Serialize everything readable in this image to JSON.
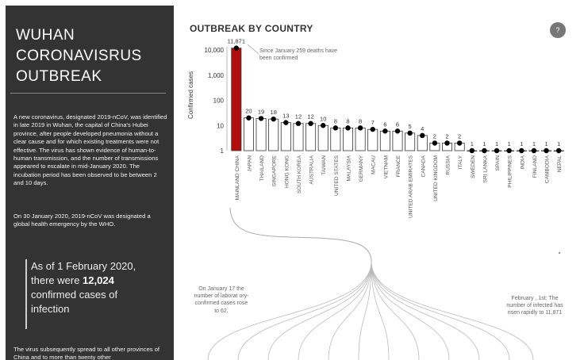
{
  "sidebar": {
    "title": "WUHAN\nCORONAVISRUS\nOUTBREAK",
    "paragraph1": "A new coronavirus, designated 2019-nCoV, was identified in late 2019 in Wuhan, the capital of China's Hubei province, after people developed pneumonia without a clear cause and for which existing treatments were not effective. The virus has shown evidence of human-to-human transmission, and the number of transmissions appeared to escalate in mid-January 2020.",
    "paragraph2": "The incubation period has been observed to be between 2 and 10 days.",
    "paragraph3": "On 30 January 2020, 2019-nCoV was designated a global health emergency by the WHO.",
    "quote_prefix": "As of 1 February 2020, there were ",
    "quote_number": "12,024",
    "quote_suffix": " confirmed cases of infection",
    "paragraph4": "The virus subsequently spread to all other provinces of China and to more than twenty other"
  },
  "help_button": "?",
  "notes": {
    "deaths": "Since January 259 deaths have been confirmed",
    "jan17": "On January 17 the number of laborat ory-confirmed cases rose to 62.",
    "feb1": "February , 1st: The number of infected has risen rapidly to 11,871"
  },
  "colors": {
    "highlight_bar": "#b30e0e",
    "bar_fill": "#ffffff",
    "bar_stroke": "#333333",
    "dot": "#000000",
    "sidebar": "#333333"
  },
  "chart_data": {
    "type": "bar",
    "title": "OUTBREAK BY COUNTRY",
    "ylabel": "Confirmed cases",
    "yscale": "log",
    "yticks": [
      1,
      10,
      100,
      1000,
      10000
    ],
    "ytick_labels": [
      "1",
      "10",
      "100",
      "1,000",
      "10,000"
    ],
    "categories": [
      "MAINLAND CHINA",
      "JAPAN",
      "THAILAND",
      "SINGAPORE",
      "HONG KONG",
      "SOUTH KOREA",
      "AUSTRALIA",
      "TAIWAN",
      "UNITED STATES",
      "MALAYSIA",
      "GERMANY",
      "MACAU",
      "VIETNAM",
      "FRANCE",
      "UNITED ARAB EMIRATES",
      "CANADA",
      "UNITED KINGDOM",
      "RUSSIA",
      "ITALY",
      "SWEDEN",
      "SRI LANKA",
      "SPAIN",
      "PHILIPPINES",
      "INDIA",
      "FINLAND",
      "CAMBODIA",
      "NEPAL"
    ],
    "values": [
      11871,
      20,
      19,
      18,
      13,
      12,
      12,
      10,
      8,
      8,
      8,
      7,
      6,
      6,
      5,
      4,
      2,
      2,
      2,
      1,
      1,
      1,
      1,
      1,
      1,
      1,
      1
    ],
    "value_labels": [
      "11,871",
      "20",
      "19",
      "18",
      "13",
      "12",
      "12",
      "10",
      "8",
      "8",
      "8",
      "7",
      "6",
      "6",
      "5",
      "4",
      "2",
      "2",
      "2",
      "1",
      "1",
      "1",
      "1",
      "1",
      "1",
      "1",
      "1"
    ],
    "highlight_index": 0,
    "grid": false
  }
}
